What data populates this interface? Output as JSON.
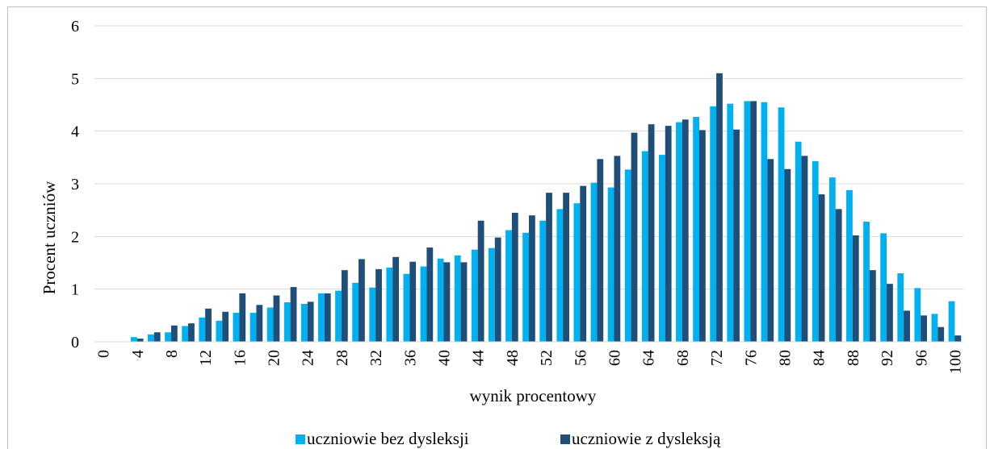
{
  "chart_data": {
    "type": "bar",
    "xlabel": "wynik procentowy",
    "ylabel": "Procent uczniów",
    "ylim": [
      0,
      6
    ],
    "yticks": [
      0,
      1,
      2,
      3,
      4,
      5,
      6
    ],
    "grid": "horizontal",
    "legend": "bottom",
    "x": [
      0,
      2,
      4,
      6,
      8,
      10,
      12,
      14,
      16,
      18,
      20,
      22,
      24,
      26,
      28,
      30,
      32,
      34,
      36,
      38,
      40,
      42,
      44,
      46,
      48,
      50,
      52,
      54,
      56,
      58,
      60,
      62,
      64,
      66,
      68,
      70,
      72,
      74,
      76,
      78,
      80,
      82,
      84,
      86,
      88,
      90,
      92,
      94,
      96,
      98,
      100
    ],
    "xtick_labels": [
      "0",
      "4",
      "8",
      "12",
      "16",
      "20",
      "24",
      "28",
      "32",
      "36",
      "40",
      "44",
      "48",
      "52",
      "56",
      "60",
      "64",
      "68",
      "72",
      "76",
      "80",
      "84",
      "88",
      "92",
      "96",
      "100"
    ],
    "series": [
      {
        "name": "uczniowie bez dysleksji",
        "color": "#00b0f0",
        "values": [
          0,
          0,
          0.09,
          0.14,
          0.18,
          0.3,
          0.46,
          0.4,
          0.55,
          0.55,
          0.65,
          0.75,
          0.72,
          0.92,
          0.97,
          1.12,
          1.03,
          1.41,
          1.29,
          1.43,
          1.58,
          1.64,
          1.75,
          1.78,
          2.12,
          2.07,
          2.3,
          2.52,
          2.63,
          3.02,
          2.93,
          3.27,
          3.62,
          3.55,
          4.17,
          4.27,
          4.47,
          4.52,
          4.57,
          4.55,
          4.45,
          3.8,
          3.43,
          3.12,
          2.88,
          2.28,
          2.06,
          1.3,
          1.02,
          0.53,
          0.77
        ]
      },
      {
        "name": "uczniowie z dysleksją",
        "color": "#1f4e79",
        "values": [
          0,
          0,
          0.06,
          0.18,
          0.31,
          0.35,
          0.63,
          0.57,
          0.92,
          0.7,
          0.88,
          1.04,
          0.76,
          0.92,
          1.36,
          1.57,
          1.38,
          1.61,
          1.52,
          1.79,
          1.51,
          1.51,
          2.3,
          1.98,
          2.45,
          2.4,
          2.83,
          2.83,
          2.96,
          3.47,
          3.53,
          3.97,
          4.13,
          4.1,
          4.22,
          4.02,
          5.1,
          4.03,
          4.57,
          3.47,
          3.28,
          3.53,
          2.8,
          2.52,
          2.02,
          1.36,
          1.1,
          0.59,
          0.5,
          0.28,
          0.12
        ]
      }
    ]
  }
}
